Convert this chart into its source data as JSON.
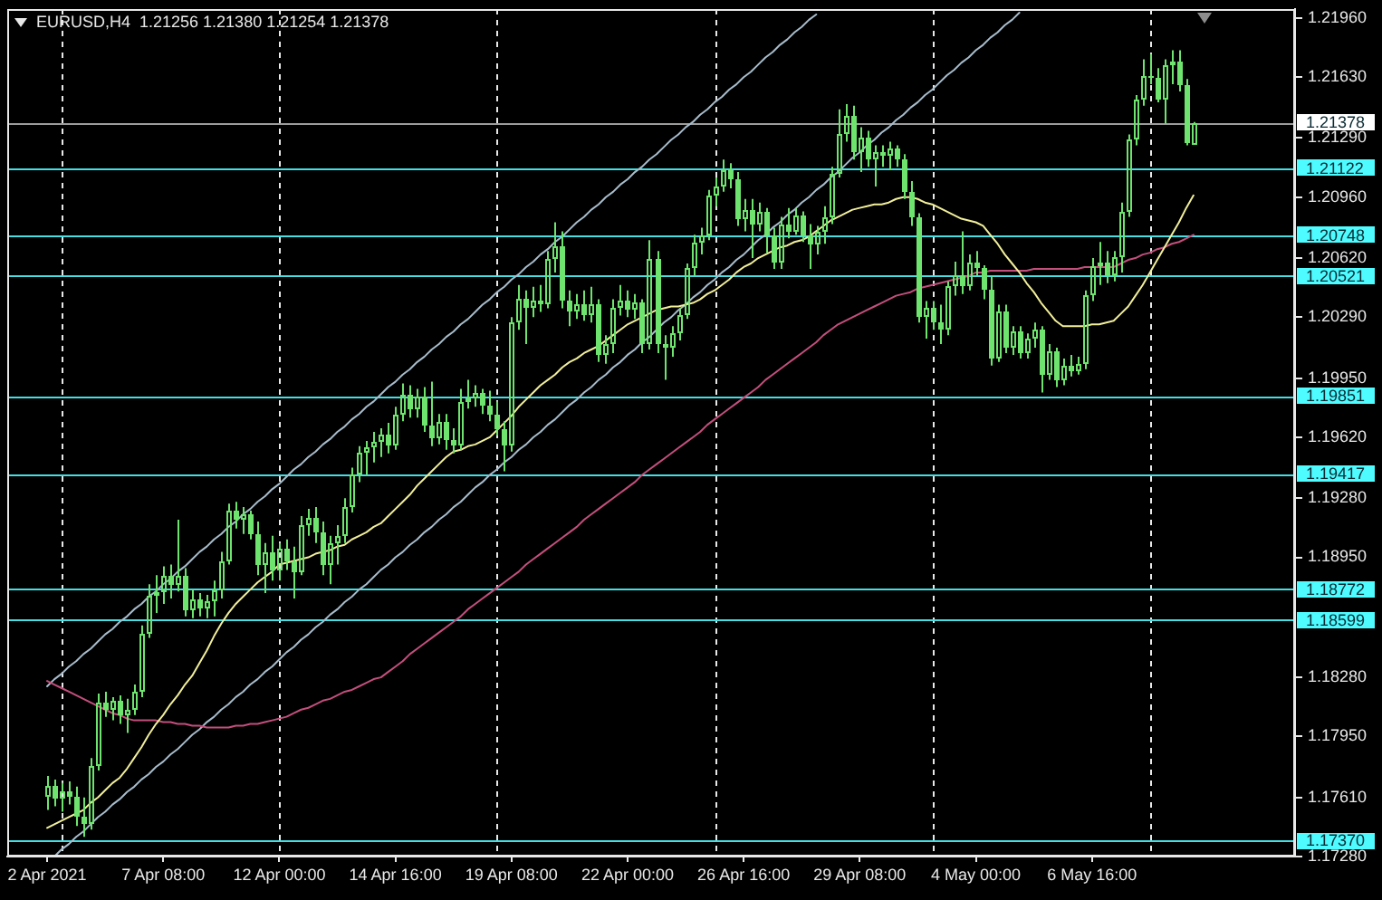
{
  "chart_data": {
    "type": "candlestick",
    "title": "EURUSD,H4  1.21256 1.21380 1.21254 1.21378",
    "color": "#6ee46e",
    "categories": [
      "2 Apr 2021",
      null,
      null,
      null,
      null,
      null,
      null,
      null,
      null,
      null,
      null,
      null,
      null,
      null,
      null,
      null,
      "7 Apr 08:00",
      null,
      null,
      null,
      null,
      null,
      null,
      null,
      null,
      null,
      null,
      null,
      null,
      null,
      null,
      null,
      "12 Apr 00:00",
      null,
      null,
      null,
      null,
      null,
      null,
      null,
      null,
      null,
      null,
      null,
      null,
      null,
      null,
      null,
      "14 Apr 16:00",
      null,
      null,
      null,
      null,
      null,
      null,
      null,
      null,
      null,
      null,
      null,
      null,
      null,
      null,
      null,
      "19 Apr 08:00",
      null,
      null,
      null,
      null,
      null,
      null,
      null,
      null,
      null,
      null,
      null,
      null,
      null,
      null,
      null,
      "22 Apr 00:00",
      null,
      null,
      null,
      null,
      null,
      null,
      null,
      null,
      null,
      null,
      null,
      null,
      null,
      null,
      null,
      "26 Apr 16:00",
      null,
      null,
      null,
      null,
      null,
      null,
      null,
      null,
      null,
      null,
      null,
      null,
      null,
      null,
      null,
      "29 Apr 08:00",
      null,
      null,
      null,
      null,
      null,
      null,
      null,
      null,
      null,
      null,
      null,
      null,
      null,
      null,
      null,
      "4 May 00:00",
      null,
      null,
      null,
      null,
      null,
      null,
      null,
      null,
      null,
      null,
      null,
      null,
      null,
      null,
      null,
      "6 May 16:00",
      null,
      null,
      null,
      null,
      null,
      null,
      null,
      null,
      null,
      null,
      null,
      null,
      null,
      null
    ],
    "ohlc": [
      [
        1.1761,
        1.1773,
        1.1754,
        1.1767
      ],
      [
        1.1767,
        1.1771,
        1.1756,
        1.176
      ],
      [
        1.176,
        1.1769,
        1.1753,
        1.1764
      ],
      [
        1.1764,
        1.177,
        1.1757,
        1.1761
      ],
      [
        1.1761,
        1.1767,
        1.1745,
        1.175
      ],
      [
        1.175,
        1.1761,
        1.1739,
        1.1746
      ],
      [
        1.1746,
        1.1783,
        1.1743,
        1.1779
      ],
      [
        1.1779,
        1.1819,
        1.1776,
        1.1814
      ],
      [
        1.1814,
        1.182,
        1.1806,
        1.181
      ],
      [
        1.181,
        1.1817,
        1.1804,
        1.1815
      ],
      [
        1.1815,
        1.1818,
        1.1802,
        1.1807
      ],
      [
        1.1807,
        1.1816,
        1.1797,
        1.181
      ],
      [
        1.181,
        1.1824,
        1.1807,
        1.182
      ],
      [
        1.182,
        1.1857,
        1.1817,
        1.1852
      ],
      [
        1.1852,
        1.188,
        1.185,
        1.1874
      ],
      [
        1.1874,
        1.1885,
        1.1864,
        1.1876
      ],
      [
        1.1876,
        1.189,
        1.1869,
        1.1885
      ],
      [
        1.1885,
        1.1891,
        1.1872,
        1.188
      ],
      [
        1.188,
        1.1916,
        1.1876,
        1.1885
      ],
      [
        1.1885,
        1.1889,
        1.1862,
        1.1865
      ],
      [
        1.1865,
        1.1877,
        1.1861,
        1.1872
      ],
      [
        1.1872,
        1.1875,
        1.1862,
        1.1866
      ],
      [
        1.1866,
        1.1874,
        1.1861,
        1.1871
      ],
      [
        1.1871,
        1.1882,
        1.1862,
        1.1877
      ],
      [
        1.1877,
        1.1898,
        1.1872,
        1.1893
      ],
      [
        1.1893,
        1.1925,
        1.1891,
        1.1921
      ],
      [
        1.1921,
        1.1926,
        1.1911,
        1.1916
      ],
      [
        1.1916,
        1.1923,
        1.1908,
        1.1919
      ],
      [
        1.1919,
        1.1921,
        1.1905,
        1.1908
      ],
      [
        1.1908,
        1.1915,
        1.1885,
        1.1891
      ],
      [
        1.1891,
        1.1903,
        1.1875,
        1.1898
      ],
      [
        1.1898,
        1.1907,
        1.1882,
        1.1888
      ],
      [
        1.1888,
        1.1903,
        1.1882,
        1.19
      ],
      [
        1.19,
        1.1905,
        1.1888,
        1.1893
      ],
      [
        1.1893,
        1.1901,
        1.1872,
        1.1887
      ],
      [
        1.1887,
        1.1918,
        1.1885,
        1.1913
      ],
      [
        1.1913,
        1.1922,
        1.1907,
        1.1917
      ],
      [
        1.1917,
        1.1923,
        1.1903,
        1.1909
      ],
      [
        1.1909,
        1.1915,
        1.1885,
        1.1891
      ],
      [
        1.1891,
        1.1907,
        1.188,
        1.1903
      ],
      [
        1.1903,
        1.1913,
        1.1891,
        1.1907
      ],
      [
        1.1907,
        1.1928,
        1.1903,
        1.1923
      ],
      [
        1.1923,
        1.1945,
        1.192,
        1.1941
      ],
      [
        1.1941,
        1.1957,
        1.1937,
        1.1953
      ],
      [
        1.1953,
        1.196,
        1.1941,
        1.1956
      ],
      [
        1.1956,
        1.1965,
        1.1948,
        1.1959
      ],
      [
        1.1959,
        1.1967,
        1.1951,
        1.1963
      ],
      [
        1.1963,
        1.197,
        1.1953,
        1.1957
      ],
      [
        1.1957,
        1.1979,
        1.1955,
        1.1975
      ],
      [
        1.1975,
        1.1992,
        1.1971,
        1.1986
      ],
      [
        1.1986,
        1.1991,
        1.1973,
        1.1978
      ],
      [
        1.1978,
        1.1989,
        1.1973,
        1.1985
      ],
      [
        1.1985,
        1.199,
        1.1965,
        1.1969
      ],
      [
        1.1969,
        1.1993,
        1.1957,
        1.1961
      ],
      [
        1.1961,
        1.1975,
        1.1958,
        1.1971
      ],
      [
        1.1971,
        1.1975,
        1.1955,
        1.196
      ],
      [
        1.196,
        1.1967,
        1.1953,
        1.1957
      ],
      [
        1.1957,
        1.1989,
        1.1955,
        1.1982
      ],
      [
        1.1982,
        1.1994,
        1.1978,
        1.1984
      ],
      [
        1.1984,
        1.1991,
        1.1979,
        1.1987
      ],
      [
        1.1987,
        1.1989,
        1.1975,
        1.198
      ],
      [
        1.198,
        1.1988,
        1.1971,
        1.1975
      ],
      [
        1.1975,
        1.1982,
        1.1963,
        1.1967
      ],
      [
        1.1967,
        1.1971,
        1.1943,
        1.1957
      ],
      [
        1.1957,
        1.2029,
        1.1954,
        1.2026
      ],
      [
        1.2026,
        1.2047,
        1.2022,
        1.2039
      ],
      [
        1.2039,
        1.2044,
        1.2014,
        1.2034
      ],
      [
        1.2034,
        1.2046,
        1.2029,
        1.2038
      ],
      [
        1.2038,
        1.2047,
        1.2032,
        1.2036
      ],
      [
        1.2036,
        1.2066,
        1.2034,
        1.2062
      ],
      [
        1.2062,
        1.2082,
        1.2054,
        1.2069
      ],
      [
        1.2069,
        1.2077,
        1.2034,
        1.2038
      ],
      [
        1.2038,
        1.2044,
        1.2024,
        1.2032
      ],
      [
        1.2032,
        1.2042,
        1.2028,
        1.2036
      ],
      [
        1.2036,
        1.2044,
        1.2027,
        1.203
      ],
      [
        1.203,
        1.2046,
        1.2026,
        1.2036
      ],
      [
        1.2036,
        1.2039,
        1.2004,
        1.2008
      ],
      [
        1.2008,
        1.2019,
        1.2003,
        1.2014
      ],
      [
        1.2014,
        1.2039,
        1.2009,
        1.2034
      ],
      [
        1.2034,
        1.2047,
        1.203,
        1.2038
      ],
      [
        1.2038,
        1.2044,
        1.2029,
        1.2033
      ],
      [
        1.2033,
        1.2042,
        1.2028,
        1.2037
      ],
      [
        1.2037,
        1.2039,
        1.2009,
        1.2014
      ],
      [
        1.2014,
        1.2072,
        1.2011,
        1.2062
      ],
      [
        1.2062,
        1.2066,
        1.2009,
        1.2014
      ],
      [
        1.2014,
        1.2019,
        1.1994,
        1.2012
      ],
      [
        1.2012,
        1.2024,
        1.2007,
        1.202
      ],
      [
        1.202,
        1.2034,
        1.2016,
        1.203
      ],
      [
        1.203,
        1.2059,
        1.2028,
        1.2056
      ],
      [
        1.2056,
        1.2075,
        1.2052,
        1.2071
      ],
      [
        1.2071,
        1.2079,
        1.2064,
        1.2075
      ],
      [
        1.2075,
        1.21,
        1.2072,
        1.2097
      ],
      [
        1.2097,
        1.2107,
        1.2091,
        1.2102
      ],
      [
        1.2102,
        1.2117,
        1.2099,
        1.2111
      ],
      [
        1.2111,
        1.2115,
        1.2101,
        1.2106
      ],
      [
        1.2106,
        1.211,
        1.208,
        1.2084
      ],
      [
        1.2084,
        1.2095,
        1.2077,
        1.2089
      ],
      [
        1.2089,
        1.2095,
        1.2062,
        1.2081
      ],
      [
        1.2081,
        1.2093,
        1.2077,
        1.2088
      ],
      [
        1.2088,
        1.209,
        1.2065,
        1.2075
      ],
      [
        1.2075,
        1.2079,
        1.2056,
        1.2059
      ],
      [
        1.2059,
        1.2085,
        1.2056,
        1.2081
      ],
      [
        1.2081,
        1.209,
        1.2073,
        1.2077
      ],
      [
        1.2077,
        1.209,
        1.2075,
        1.2086
      ],
      [
        1.2086,
        1.2088,
        1.2071,
        1.2075
      ],
      [
        1.2075,
        1.2081,
        1.2056,
        1.207
      ],
      [
        1.207,
        1.208,
        1.2064,
        1.2077
      ],
      [
        1.2077,
        1.2091,
        1.207,
        1.2085
      ],
      [
        1.2085,
        1.2113,
        1.2081,
        1.2109
      ],
      [
        1.2109,
        1.2145,
        1.2107,
        1.2131
      ],
      [
        1.2131,
        1.2148,
        1.2127,
        1.2141
      ],
      [
        1.2141,
        1.2147,
        1.2117,
        1.2121
      ],
      [
        1.2121,
        1.2135,
        1.211,
        1.2129
      ],
      [
        1.2129,
        1.2133,
        1.2113,
        1.2117
      ],
      [
        1.2117,
        1.2125,
        1.2102,
        1.2121
      ],
      [
        1.2121,
        1.2125,
        1.2113,
        1.2119
      ],
      [
        1.2119,
        1.2127,
        1.2111,
        1.2123
      ],
      [
        1.2123,
        1.2125,
        1.2113,
        1.2117
      ],
      [
        1.2117,
        1.212,
        1.2095,
        1.2099
      ],
      [
        1.2099,
        1.2105,
        1.208,
        1.2085
      ],
      [
        1.2085,
        1.2087,
        1.2026,
        1.2029
      ],
      [
        1.2029,
        1.2038,
        1.2017,
        1.2034
      ],
      [
        1.2034,
        1.2038,
        1.2022,
        1.2026
      ],
      [
        1.2026,
        1.2036,
        1.2014,
        1.2022
      ],
      [
        1.2022,
        1.2049,
        1.2019,
        1.2046
      ],
      [
        1.2046,
        1.206,
        1.2041,
        1.2052
      ],
      [
        1.2052,
        1.2077,
        1.2042,
        1.2046
      ],
      [
        1.2046,
        1.2064,
        1.2044,
        1.2059
      ],
      [
        1.2059,
        1.2066,
        1.2052,
        1.2056
      ],
      [
        1.2056,
        1.2058,
        1.2039,
        1.2044
      ],
      [
        1.2044,
        1.2052,
        1.2002,
        1.2006
      ],
      [
        1.2006,
        1.2036,
        1.2004,
        1.2032
      ],
      [
        1.2032,
        1.2036,
        1.2009,
        1.2012
      ],
      [
        1.2012,
        1.2024,
        1.2008,
        1.2021
      ],
      [
        1.2021,
        1.2024,
        1.2006,
        1.2009
      ],
      [
        1.2009,
        1.202,
        1.2006,
        1.2017
      ],
      [
        1.2017,
        1.2026,
        1.2012,
        1.2022
      ],
      [
        1.2022,
        1.2024,
        1.1987,
        1.1997
      ],
      [
        1.1997,
        1.2014,
        1.1994,
        1.201
      ],
      [
        1.201,
        1.2012,
        1.199,
        1.1994
      ],
      [
        1.1994,
        1.2006,
        1.1991,
        1.2002
      ],
      [
        1.2002,
        1.2008,
        1.1996,
        1.1999
      ],
      [
        1.1999,
        1.2007,
        1.1997,
        1.2003
      ],
      [
        1.2003,
        1.2044,
        1.2,
        1.2041
      ],
      [
        1.2041,
        1.2062,
        1.2038,
        1.2057
      ],
      [
        1.2057,
        1.2071,
        1.2047,
        1.206
      ],
      [
        1.206,
        1.2066,
        1.2048,
        1.2052
      ],
      [
        1.2052,
        1.2066,
        1.2049,
        1.2063
      ],
      [
        1.2063,
        1.2093,
        1.2054,
        1.2088
      ],
      [
        1.2088,
        1.2131,
        1.2085,
        1.2128
      ],
      [
        1.2128,
        1.2153,
        1.2125,
        1.215
      ],
      [
        1.215,
        1.2173,
        1.2147,
        1.2164
      ],
      [
        1.2164,
        1.2176,
        1.2159,
        1.2163
      ],
      [
        1.2163,
        1.2168,
        1.2149,
        1.215
      ],
      [
        1.215,
        1.2173,
        1.2137,
        1.217
      ],
      [
        1.217,
        1.2178,
        1.2159,
        1.2172
      ],
      [
        1.2172,
        1.2178,
        1.2155,
        1.2159
      ],
      [
        1.2159,
        1.2162,
        1.2125,
        1.2126
      ],
      [
        1.21256,
        1.2138,
        1.21254,
        1.21378
      ]
    ],
    "series": [
      {
        "type": "line",
        "color": "#f2ef9a",
        "values": [
          1.1744,
          1.1746,
          1.1748,
          1.175,
          1.1752,
          1.1754,
          1.1758,
          1.1761,
          1.1765,
          1.1769,
          1.1772,
          1.1777,
          1.1783,
          1.1789,
          1.1796,
          1.1802,
          1.1807,
          1.1813,
          1.1818,
          1.1824,
          1.1829,
          1.1836,
          1.1843,
          1.1851,
          1.1858,
          1.1864,
          1.1869,
          1.1873,
          1.1877,
          1.1881,
          1.1884,
          1.1887,
          1.1891,
          1.1892,
          1.1893,
          1.1894,
          1.1895,
          1.1897,
          1.1898,
          1.1899,
          1.1901,
          1.1902,
          1.1905,
          1.1907,
          1.1909,
          1.1912,
          1.1914,
          1.1918,
          1.1922,
          1.1926,
          1.193,
          1.1935,
          1.1939,
          1.1943,
          1.1947,
          1.1951,
          1.1954,
          1.1955,
          1.1957,
          1.1958,
          1.196,
          1.1962,
          1.1966,
          1.197,
          1.1974,
          1.1979,
          1.1983,
          1.1987,
          1.1991,
          1.1994,
          1.1997,
          1.2001,
          1.2004,
          1.2006,
          1.2009,
          1.2011,
          1.2013,
          1.2016,
          1.2019,
          1.2022,
          1.2025,
          1.2027,
          1.2029,
          1.2031,
          1.2033,
          1.2034,
          1.2035,
          1.2035,
          1.2036,
          1.2037,
          1.2039,
          1.2042,
          1.2044,
          1.2047,
          1.205,
          1.2054,
          1.2057,
          1.2059,
          1.2062,
          1.2064,
          1.2066,
          1.2068,
          1.2069,
          1.2071,
          1.2072,
          1.2074,
          1.2077,
          1.208,
          1.2083,
          1.2085,
          1.2087,
          1.2089,
          1.209,
          1.2091,
          1.2092,
          1.2092,
          1.2093,
          1.2095,
          1.2096,
          1.2096,
          1.2095,
          1.2093,
          1.2092,
          1.209,
          1.2088,
          1.2086,
          1.2084,
          1.2083,
          1.2082,
          1.208,
          1.2075,
          1.207,
          1.2064,
          1.2059,
          1.2054,
          1.2048,
          1.2043,
          1.2037,
          1.2032,
          1.2027,
          1.2024,
          1.2024,
          1.2024,
          1.2024,
          1.2025,
          1.2025,
          1.2026,
          1.2027,
          1.2031,
          1.2035,
          1.2041,
          1.2047,
          1.2054,
          1.2061,
          1.2068,
          1.2075,
          1.2082,
          1.209,
          1.2097
        ]
      },
      {
        "type": "line",
        "color": "#c44f7c",
        "values": [
          1.1826,
          1.1824,
          1.1822,
          1.182,
          1.1818,
          1.1816,
          1.1814,
          1.1812,
          1.181,
          1.1808,
          1.1807,
          1.1805,
          1.1804,
          1.1804,
          1.1804,
          1.1804,
          1.1803,
          1.1803,
          1.1802,
          1.1802,
          1.1801,
          1.1801,
          1.18,
          1.18,
          1.18,
          1.18,
          1.1801,
          1.1801,
          1.1802,
          1.1802,
          1.1803,
          1.1804,
          1.1805,
          1.1806,
          1.1808,
          1.181,
          1.1811,
          1.1813,
          1.1815,
          1.1816,
          1.1818,
          1.182,
          1.1821,
          1.1823,
          1.1825,
          1.1827,
          1.1828,
          1.1831,
          1.1834,
          1.1837,
          1.1841,
          1.1844,
          1.1847,
          1.185,
          1.1853,
          1.1856,
          1.1859,
          1.1862,
          1.1866,
          1.1869,
          1.1872,
          1.1875,
          1.1878,
          1.1881,
          1.1884,
          1.1887,
          1.1891,
          1.1894,
          1.1897,
          1.19,
          1.1903,
          1.1906,
          1.1909,
          1.1912,
          1.1916,
          1.1919,
          1.1922,
          1.1925,
          1.1928,
          1.1931,
          1.1934,
          1.1937,
          1.1941,
          1.1944,
          1.1947,
          1.195,
          1.1953,
          1.1956,
          1.1959,
          1.1962,
          1.1965,
          1.1969,
          1.1972,
          1.1975,
          1.1978,
          1.1981,
          1.1984,
          1.1987,
          1.199,
          1.1994,
          1.1997,
          1.2,
          1.2003,
          1.2006,
          1.2009,
          1.2012,
          1.2015,
          1.2019,
          1.2022,
          1.2025,
          1.2027,
          1.2029,
          1.2031,
          1.2033,
          1.2035,
          1.2037,
          1.2039,
          1.2041,
          1.2042,
          1.2043,
          1.2045,
          1.2046,
          1.2047,
          1.2048,
          1.2049,
          1.205,
          1.2051,
          1.2052,
          1.2054,
          1.2054,
          1.2055,
          1.2055,
          1.2055,
          1.2055,
          1.2055,
          1.2055,
          1.2056,
          1.2056,
          1.2056,
          1.2056,
          1.2056,
          1.2056,
          1.2056,
          1.2057,
          1.2057,
          1.2057,
          1.2057,
          1.2057,
          1.2059,
          1.2061,
          1.2062,
          1.2064,
          1.2065,
          1.2067,
          1.2068,
          1.207,
          1.2071,
          1.2073,
          1.2075
        ]
      },
      {
        "type": "line",
        "color": "#a7bccc",
        "values": [
          1.1823,
          1.1827,
          1.183,
          1.1834,
          1.1837,
          1.1841,
          1.1844,
          1.1848,
          1.1852,
          1.1855,
          1.1859,
          1.1862,
          1.1866,
          1.1869,
          1.1873,
          1.1876,
          1.188,
          1.1883,
          1.1887,
          1.189,
          1.1894,
          1.1898,
          1.1901,
          1.1905,
          1.1908,
          1.1912,
          1.1915,
          1.1919,
          1.1922,
          1.1926,
          1.1929,
          1.1933,
          1.1936,
          1.194,
          1.1944,
          1.1947,
          1.1951,
          1.1954,
          1.1958,
          1.1961,
          1.1965,
          1.1968,
          1.1972,
          1.1975,
          1.1979,
          1.1982,
          1.1986,
          1.199,
          1.1993,
          1.1997,
          1.2,
          1.2004,
          1.2007,
          1.2011,
          1.2014,
          1.2018,
          1.2021,
          1.2025,
          1.2028,
          1.2032,
          1.2036,
          1.2039,
          1.2043,
          1.2046,
          1.205,
          1.2053,
          1.2057,
          1.206,
          1.2064,
          1.2067,
          1.2071,
          1.2074,
          1.2078,
          1.2082,
          1.2085,
          1.2089,
          1.2092,
          1.2096,
          1.2099,
          1.2103,
          1.2106,
          1.211,
          1.2113,
          1.2117,
          1.212,
          1.2124,
          1.2128,
          1.2131,
          1.2135,
          1.2138,
          1.2142,
          1.2145,
          1.2149,
          1.2152,
          1.2156,
          1.2159,
          1.2163,
          1.2166,
          1.217,
          1.2174,
          1.2177,
          1.2181,
          1.2184,
          1.2188,
          1.2191,
          1.2195,
          1.2198,
          null,
          null,
          null,
          null,
          null,
          null,
          null,
          null,
          null,
          null,
          null,
          null,
          null,
          null,
          null,
          null,
          null,
          null,
          null,
          null,
          null,
          null,
          null,
          null,
          null,
          null,
          null,
          null,
          null,
          null,
          null,
          null,
          null,
          null,
          null,
          null,
          null,
          null,
          null,
          null,
          null,
          null,
          null,
          null,
          null,
          null,
          null,
          null,
          null,
          null,
          null,
          null
        ]
      },
      {
        "type": "line",
        "color": "#a7bccc",
        "values": [
          null,
          1.1728,
          1.1732,
          1.1735,
          1.1739,
          1.1742,
          1.1746,
          1.175,
          1.1753,
          1.1757,
          1.176,
          1.1764,
          1.1767,
          1.1771,
          1.1774,
          1.1778,
          1.1781,
          1.1785,
          1.1788,
          1.1792,
          1.1796,
          1.1799,
          1.1803,
          1.1806,
          1.181,
          1.1813,
          1.1817,
          1.182,
          1.1824,
          1.1827,
          1.1831,
          1.1834,
          1.1838,
          1.1842,
          1.1845,
          1.1849,
          1.1852,
          1.1856,
          1.1859,
          1.1863,
          1.1866,
          1.187,
          1.1873,
          1.1877,
          1.188,
          1.1884,
          1.1888,
          1.1891,
          1.1895,
          1.1898,
          1.1902,
          1.1905,
          1.1909,
          1.1912,
          1.1916,
          1.1919,
          1.1923,
          1.1926,
          1.193,
          1.1934,
          1.1937,
          1.1941,
          1.1944,
          1.1948,
          1.1951,
          1.1955,
          1.1958,
          1.1962,
          1.1965,
          1.1969,
          1.1972,
          1.1976,
          1.198,
          1.1983,
          1.1987,
          1.199,
          1.1994,
          1.1997,
          1.2001,
          1.2004,
          1.2008,
          1.2011,
          1.2015,
          1.2018,
          1.2022,
          1.2026,
          1.2029,
          1.2033,
          1.2036,
          1.204,
          1.2043,
          1.2047,
          1.205,
          1.2054,
          1.2057,
          1.2061,
          1.2064,
          1.2068,
          1.2072,
          1.2075,
          1.2079,
          1.2082,
          1.2086,
          1.2089,
          1.2093,
          1.2096,
          1.21,
          1.2103,
          1.2107,
          1.211,
          1.2114,
          1.2118,
          1.2121,
          1.2125,
          1.2128,
          1.2132,
          1.2135,
          1.2139,
          1.2142,
          1.2146,
          1.2149,
          1.2153,
          1.2156,
          1.216,
          1.2164,
          1.2167,
          1.2171,
          1.2174,
          1.2178,
          1.2181,
          1.2185,
          1.2188,
          1.2192,
          1.2195,
          1.2199,
          null,
          null,
          null,
          null,
          null,
          null,
          null,
          null,
          null,
          null,
          null,
          null,
          null,
          null,
          null,
          null,
          null,
          null,
          null,
          null,
          null,
          null,
          null,
          null
        ]
      }
    ],
    "ylim": [
      1.1728,
      1.2201
    ],
    "yticks": [
      {
        "value": 1.1728,
        "label": "1.17280"
      },
      {
        "value": 1.1761,
        "label": "1.17610"
      },
      {
        "value": 1.1795,
        "label": "1.17950"
      },
      {
        "value": 1.1828,
        "label": "1.18280"
      },
      {
        "value": 1.1895,
        "label": "1.18950"
      },
      {
        "value": 1.1928,
        "label": "1.19280"
      },
      {
        "value": 1.1962,
        "label": "1.19620"
      },
      {
        "value": 1.1995,
        "label": "1.19950"
      },
      {
        "value": 1.2029,
        "label": "1.20290"
      },
      {
        "value": 1.2062,
        "label": "1.20620"
      },
      {
        "value": 1.2096,
        "label": "1.20960"
      },
      {
        "value": 1.2129,
        "label": "1.21290"
      },
      {
        "value": 1.2163,
        "label": "1.21630"
      },
      {
        "value": 1.2196,
        "label": "1.21960"
      }
    ],
    "ref_lines": [
      {
        "axis": "y",
        "value": 1.21378,
        "label": "1.21378",
        "color": "#9c9c9c"
      },
      {
        "axis": "y",
        "value": 1.21122,
        "label": "1.21122",
        "color": "#45dfe3"
      },
      {
        "axis": "y",
        "value": 1.20748,
        "label": "1.20748",
        "color": "#45dfe3"
      },
      {
        "axis": "y",
        "value": 1.20521,
        "label": "1.20521",
        "color": "#45dfe3"
      },
      {
        "axis": "y",
        "value": 1.19851,
        "label": "1.19851",
        "color": "#45dfe3"
      },
      {
        "axis": "y",
        "value": 1.19417,
        "label": "1.19417",
        "color": "#45dfe3"
      },
      {
        "axis": "y",
        "value": 1.18772,
        "label": "1.18772",
        "color": "#45dfe3"
      },
      {
        "axis": "y",
        "value": 1.18599,
        "label": "1.18599",
        "color": "#45dfe3"
      },
      {
        "axis": "y",
        "value": 1.1737,
        "label": "1.17370",
        "color": "#45dfe3"
      }
    ]
  }
}
